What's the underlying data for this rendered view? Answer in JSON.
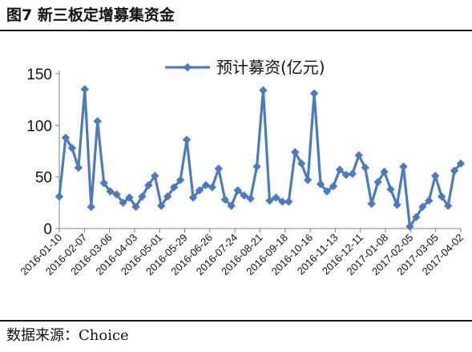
{
  "figure_title": "图7  新三板定增募集资金",
  "source_text": "数据来源：Choice",
  "colors": {
    "series": "#4a7bc1",
    "axis": "#7f7f7f",
    "text": "#111111"
  },
  "chart_data": {
    "type": "line",
    "title": "",
    "xlabel": "",
    "ylabel": "",
    "ylim": [
      0,
      150
    ],
    "yticks": [
      0,
      50,
      100,
      150
    ],
    "grid": false,
    "legend_position": "top-center",
    "xtick_labels": [
      "2016-01-10",
      "2016-02-07",
      "2016-03-06",
      "2016-04-03",
      "2016-05-01",
      "2016-05-29",
      "2016-06-26",
      "2016-07-24",
      "2016-08-21",
      "2016-09-18",
      "2016-10-16",
      "2016-11-13",
      "2016-12-11",
      "2017-01-08",
      "2017-02-05",
      "2017-03-05",
      "2017-04-02"
    ],
    "series": [
      {
        "name": "预计募资(亿元)",
        "color": "#4a7bc1",
        "marker": "diamond",
        "values": [
          31,
          88,
          78,
          59,
          135,
          21,
          104,
          44,
          36,
          33,
          25,
          30,
          21,
          31,
          42,
          51,
          22,
          31,
          40,
          47,
          86,
          30,
          37,
          42,
          40,
          58,
          28,
          22,
          37,
          32,
          29,
          60,
          134,
          27,
          30,
          26,
          26,
          74,
          63,
          47,
          131,
          43,
          36,
          41,
          57,
          52,
          53,
          71,
          59,
          24,
          45,
          55,
          38,
          23,
          60,
          2,
          11,
          21,
          27,
          51,
          31,
          22,
          56,
          63
        ]
      }
    ]
  }
}
